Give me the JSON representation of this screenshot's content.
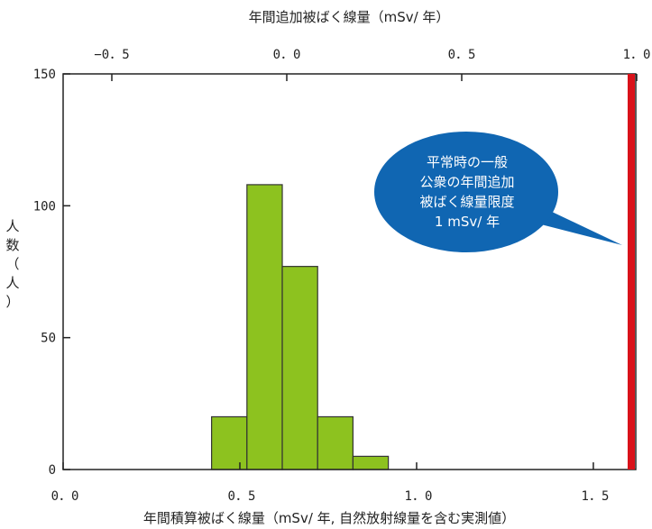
{
  "chart_data": {
    "type": "bar",
    "top_axis_title": "年間追加被ばく線量（mSv/ 年）",
    "top_axis_ticks": [
      "−0．5",
      "0．0",
      "0．5",
      "1．0"
    ],
    "top_axis_values": [
      -0.5,
      0.0,
      0.5,
      1.0
    ],
    "xlabel": "年間積算被ばく線量（mSv/ 年, 自然放射線量を含む実測値）",
    "ylabel_chars": [
      "人",
      "数",
      "（",
      "人",
      "）"
    ],
    "x_ticks": [
      "0．0",
      "0．5",
      "1．0",
      "1．5"
    ],
    "x_tick_values": [
      0.0,
      0.5,
      1.0,
      1.5
    ],
    "y_ticks": [
      "0",
      "50",
      "100",
      "150"
    ],
    "y_tick_values": [
      0,
      50,
      100,
      150
    ],
    "xlim": [
      0.0,
      1.62
    ],
    "ylim": [
      0,
      150
    ],
    "bins": [
      {
        "from": 0.42,
        "to": 0.52,
        "value": 20
      },
      {
        "from": 0.52,
        "to": 0.62,
        "value": 108
      },
      {
        "from": 0.62,
        "to": 0.72,
        "value": 77
      },
      {
        "from": 0.72,
        "to": 0.82,
        "value": 20
      },
      {
        "from": 0.82,
        "to": 0.92,
        "value": 5
      }
    ],
    "limit_line": {
      "x": 1.62,
      "color": "#d9121a"
    },
    "callout_lines": [
      "平常時の一般",
      "公衆の年間追加",
      "被ばく線量限度",
      "1 mSv/ 年"
    ],
    "bar_color": "#8dc21f",
    "callout_color": "#1066b2",
    "grid": false
  }
}
